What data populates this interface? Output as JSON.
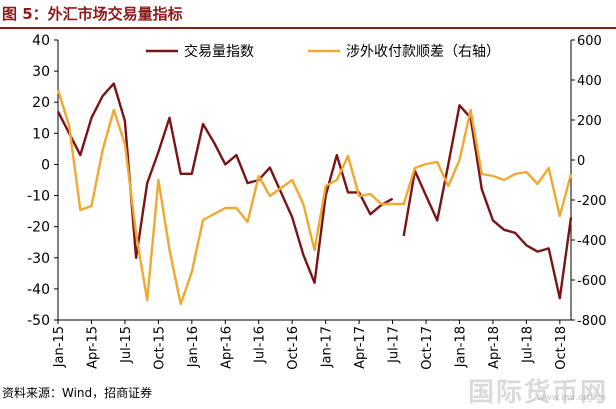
{
  "header": {
    "title": "图 5：外汇市场交易量指标"
  },
  "footer": {
    "source": "资料来源：Wind，招商证券"
  },
  "watermark": {
    "text": "国际货币网",
    "url": "www.imi.org.cn"
  },
  "colors": {
    "accent": "#8B1A1A",
    "series1": "#7B1416",
    "series2": "#F0A830"
  },
  "chart_data": {
    "type": "line",
    "title": "",
    "xlabel": "",
    "ylabel": "",
    "x_tick_labels": [
      "Jan-15",
      "Apr-15",
      "Jul-15",
      "Oct-15",
      "Jan-16",
      "Apr-16",
      "Jul-16",
      "Oct-16",
      "Jan-17",
      "Apr-17",
      "Jul-17",
      "Oct-17",
      "Jan-18",
      "Apr-18",
      "Jul-18",
      "Oct-18"
    ],
    "y_left": {
      "min": -50,
      "max": 40,
      "ticks": [
        40,
        30,
        20,
        10,
        0,
        -10,
        -20,
        -30,
        -40,
        -50
      ]
    },
    "y_right": {
      "min": -800,
      "max": 600,
      "ticks": [
        600,
        400,
        200,
        0,
        -200,
        -400,
        -600,
        -800
      ]
    },
    "legend_position": "top",
    "grid": false,
    "series": [
      {
        "name": "交易量指数",
        "axis": "left",
        "x": [
          "2015-01",
          "2015-02",
          "2015-03",
          "2015-04",
          "2015-05",
          "2015-06",
          "2015-07",
          "2015-08",
          "2015-09",
          "2015-10",
          "2015-11",
          "2015-12",
          "2016-01",
          "2016-02",
          "2016-03",
          "2016-04",
          "2016-05",
          "2016-06",
          "2016-07",
          "2016-08",
          "2016-09",
          "2016-10",
          "2016-11",
          "2016-12",
          "2017-01",
          "2017-02",
          "2017-03",
          "2017-04",
          "2017-05",
          "2017-06",
          "2017-07"
        ],
        "values": [
          17,
          10,
          3,
          15,
          22,
          26,
          14,
          -30,
          -6,
          4,
          15,
          -3,
          -3,
          13,
          7,
          0,
          3,
          -6,
          -5,
          -1,
          -9,
          -17,
          -29,
          -38,
          -10,
          3,
          -9,
          -9,
          -16,
          -13,
          -11
        ]
      },
      {
        "name": "交易量指数",
        "axis": "left",
        "x": [
          "2017-08",
          "2017-09",
          "2017-10",
          "2017-11",
          "2017-12",
          "2018-01",
          "2018-02",
          "2018-03",
          "2018-04",
          "2018-05",
          "2018-06",
          "2018-07",
          "2018-08",
          "2018-09",
          "2018-10",
          "2018-11"
        ],
        "values": [
          -23,
          -2,
          -10,
          -18,
          0,
          19,
          15,
          -8,
          -18,
          -21,
          -22,
          -26,
          -28,
          -27,
          -43,
          -17
        ]
      },
      {
        "name": "涉外收付款顺差（右轴）",
        "axis": "right",
        "x": [
          "2015-01",
          "2015-02",
          "2015-03",
          "2015-04",
          "2015-05",
          "2015-06",
          "2015-07",
          "2015-08",
          "2015-09",
          "2015-10",
          "2015-11",
          "2015-12",
          "2016-01",
          "2016-02",
          "2016-03",
          "2016-04",
          "2016-05",
          "2016-06",
          "2016-07",
          "2016-08",
          "2016-09",
          "2016-10",
          "2016-11",
          "2016-12",
          "2017-01",
          "2017-02",
          "2017-03",
          "2017-04",
          "2017-05",
          "2017-06",
          "2017-07",
          "2017-08",
          "2017-09",
          "2017-10",
          "2017-11",
          "2017-12",
          "2018-01",
          "2018-02",
          "2018-03",
          "2018-04",
          "2018-05",
          "2018-06",
          "2018-07",
          "2018-08",
          "2018-09",
          "2018-10",
          "2018-11"
        ],
        "values": [
          350,
          170,
          -250,
          -230,
          50,
          250,
          80,
          -370,
          -700,
          -100,
          -450,
          -720,
          -560,
          -300,
          -270,
          -240,
          -240,
          -310,
          -80,
          -180,
          -140,
          -100,
          -220,
          -450,
          -130,
          -100,
          20,
          -180,
          -170,
          -220,
          -220,
          -220,
          -40,
          -20,
          -10,
          -130,
          0,
          250,
          -70,
          -80,
          -100,
          -70,
          -60,
          -120,
          -40,
          -280,
          -70
        ]
      }
    ]
  }
}
